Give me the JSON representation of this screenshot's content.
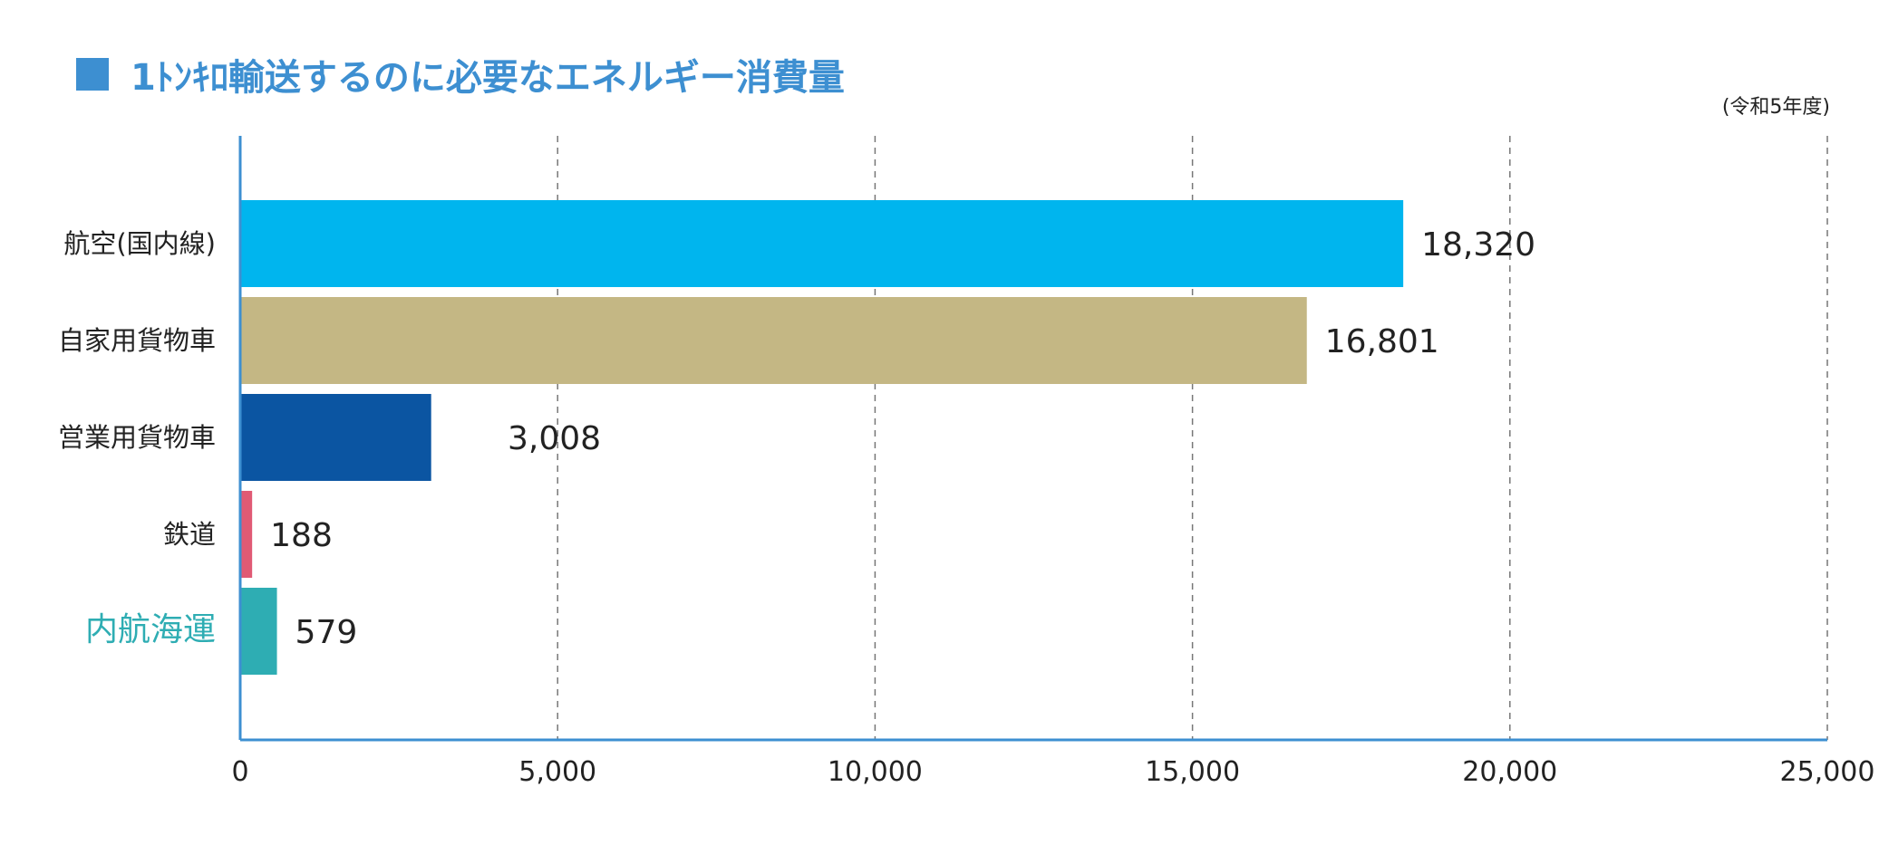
{
  "title": {
    "text": "1ﾄﾝｷﾛ輸送するのに必要なエネルギー消費量",
    "color": "#3d8fd1"
  },
  "unit_note": "(令和5年度)",
  "chart_data": {
    "type": "bar",
    "orientation": "horizontal",
    "categories": [
      "航空(国内線)",
      "自家用貨物車",
      "営業用貨物車",
      "鉄道",
      "内航海運"
    ],
    "values": [
      18320,
      16801,
      3008,
      188,
      579
    ],
    "value_labels": [
      "18,320",
      "16,801",
      "3,008",
      "188",
      "579"
    ],
    "bar_colors": [
      "#00b5ee",
      "#c4b784",
      "#0b55a2",
      "#e05a74",
      "#2eadb3"
    ],
    "highlight_category": "内航海運",
    "highlight_color": "#2eadb3",
    "xlim": [
      0,
      25000
    ],
    "x_ticks": [
      0,
      5000,
      10000,
      15000,
      20000,
      25000
    ],
    "x_tick_labels": [
      "0",
      "5,000",
      "10,000",
      "15,000",
      "20,000",
      "25,000"
    ],
    "xlabel": "",
    "ylabel": "",
    "grid": "vertical-dashed",
    "axis_color": "#3d8fd1",
    "grid_color": "#777777"
  }
}
